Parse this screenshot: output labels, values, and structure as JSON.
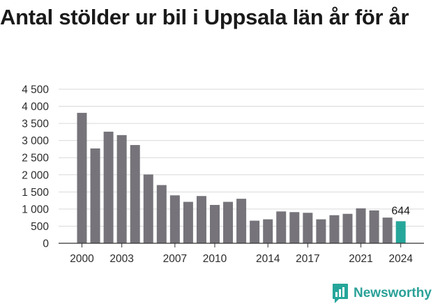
{
  "title": "Antal stölder ur bil i Uppsala län år för år",
  "brand": {
    "name": "Newsworthy",
    "color": "#26a69a"
  },
  "chart_data": {
    "type": "bar",
    "title": "Antal stölder ur bil i Uppsala län år för år",
    "xlabel": "",
    "ylabel": "",
    "ylim": [
      0,
      4500
    ],
    "yticks": [
      0,
      500,
      1000,
      1500,
      2000,
      2500,
      3000,
      3500,
      4000,
      4500
    ],
    "ytick_labels": [
      "0",
      "500",
      "1 000",
      "1 500",
      "2 000",
      "2 500",
      "3 000",
      "3 500",
      "4 000",
      "4 500"
    ],
    "xtick_labels": [
      "2000",
      "2003",
      "2007",
      "2010",
      "2014",
      "2017",
      "2021",
      "2024"
    ],
    "grid": true,
    "categories": [
      "2000",
      "2001",
      "2002",
      "2003",
      "2004",
      "2005",
      "2006",
      "2007",
      "2008",
      "2009",
      "2010",
      "2011",
      "2012",
      "2013",
      "2014",
      "2015",
      "2016",
      "2017",
      "2018",
      "2019",
      "2020",
      "2021",
      "2022",
      "2023",
      "2024"
    ],
    "values": [
      3810,
      2770,
      3260,
      3160,
      2870,
      2010,
      1700,
      1400,
      1210,
      1380,
      1120,
      1210,
      1300,
      660,
      700,
      930,
      910,
      890,
      700,
      820,
      860,
      1020,
      960,
      750,
      644
    ],
    "bar_color": "#76747a",
    "highlight_color": "#26a69a",
    "highlight_index": 24,
    "annotation": {
      "category": "2024",
      "text": "644"
    }
  }
}
